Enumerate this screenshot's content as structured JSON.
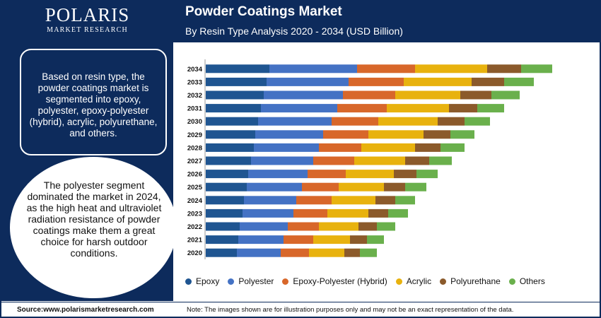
{
  "brand": {
    "name": "POLARIS",
    "tagline": "MARKET RESEARCH"
  },
  "intro_text": "Based on resin type, the powder coatings market is segmented into epoxy, polyester, epoxy-polyester (hybrid), acrylic, polyurethane, and others.",
  "highlight_text": "The polyester segment dominated the market in 2024, as the high heat and ultraviolet radiation resistance of powder coatings make them a great choice for harsh outdoor conditions.",
  "source_text": "Source:www.polarismarketresearch.com",
  "note_text": "Note: The images shown are for illustration purposes only and may not be an exact representation of the data.",
  "colors": {
    "panel": "#0d2b5c"
  },
  "chart_data": {
    "type": "bar",
    "orientation": "horizontal",
    "stacked": true,
    "title": "Powder Coatings Market",
    "subtitle": "By Resin Type Analysis 2020 - 2034 (USD Billion)",
    "xlabel": "",
    "ylabel": "",
    "grid": false,
    "legend_position": "bottom",
    "categories": [
      "2034",
      "2033",
      "2032",
      "2031",
      "2030",
      "2029",
      "2028",
      "2027",
      "2026",
      "2025",
      "2024",
      "2023",
      "2022",
      "2021",
      "2020"
    ],
    "series": [
      {
        "name": "Epoxy",
        "color": "#1f5591",
        "values": [
          4.5,
          4.3,
          4.1,
          3.9,
          3.7,
          3.5,
          3.4,
          3.2,
          3.0,
          2.9,
          2.7,
          2.6,
          2.4,
          2.3,
          2.2
        ]
      },
      {
        "name": "Polyester",
        "color": "#4472c4",
        "values": [
          6.2,
          5.8,
          5.6,
          5.4,
          5.2,
          4.8,
          4.6,
          4.4,
          4.2,
          3.9,
          3.7,
          3.6,
          3.4,
          3.2,
          3.1
        ]
      },
      {
        "name": "Epoxy-Polyester (Hybrid)",
        "color": "#d8672a",
        "values": [
          4.1,
          3.9,
          3.7,
          3.5,
          3.3,
          3.2,
          3.0,
          2.9,
          2.7,
          2.6,
          2.5,
          2.4,
          2.2,
          2.1,
          2.0
        ]
      },
      {
        "name": "Acrylic",
        "color": "#e8b20e",
        "values": [
          5.1,
          4.8,
          4.6,
          4.4,
          4.2,
          3.9,
          3.8,
          3.6,
          3.4,
          3.2,
          3.1,
          2.9,
          2.8,
          2.6,
          2.5
        ]
      },
      {
        "name": "Polyurethane",
        "color": "#8b5a2b",
        "values": [
          2.4,
          2.3,
          2.2,
          2.0,
          1.9,
          1.9,
          1.8,
          1.7,
          1.6,
          1.5,
          1.4,
          1.4,
          1.3,
          1.2,
          1.1
        ]
      },
      {
        "name": "Others",
        "color": "#6ab04c",
        "values": [
          2.2,
          2.1,
          2.0,
          1.9,
          1.8,
          1.7,
          1.7,
          1.6,
          1.5,
          1.5,
          1.4,
          1.4,
          1.3,
          1.2,
          1.2
        ]
      }
    ]
  }
}
